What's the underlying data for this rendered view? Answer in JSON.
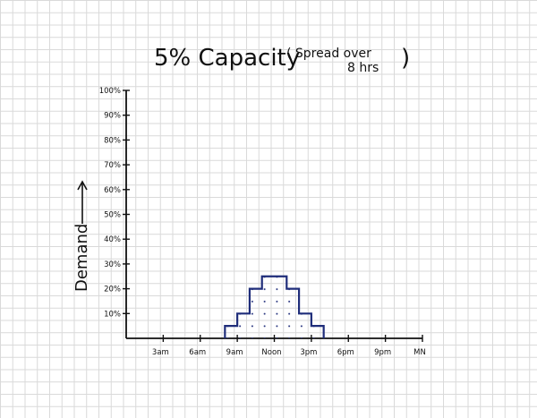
{
  "chart_data": {
    "type": "area",
    "title": "5% Capacity",
    "subtitle_line1": "( Spread over",
    "subtitle_line2": "8 hrs",
    "subtitle_close": ")",
    "ylabel": "Demand",
    "xlabel": "",
    "y_ticks": [
      "10%",
      "20%",
      "30%",
      "40%",
      "50%",
      "60%",
      "70%",
      "80%",
      "90%",
      "100%"
    ],
    "x_ticks": [
      "3am",
      "6am",
      "9am",
      "Noon",
      "3pm",
      "6pm",
      "9pm",
      "MN"
    ],
    "x_tick_hours": [
      3,
      6,
      9,
      12,
      15,
      18,
      21,
      24
    ],
    "xlim": [
      0,
      24
    ],
    "ylim": [
      0,
      100
    ],
    "grid": true,
    "step_hours": [
      8,
      9,
      10,
      11,
      12,
      13,
      14,
      15
    ],
    "step_values": [
      5,
      10,
      20,
      25,
      25,
      20,
      10,
      5
    ],
    "line_color": "#1f2d7a",
    "axis_color": "#111111"
  }
}
